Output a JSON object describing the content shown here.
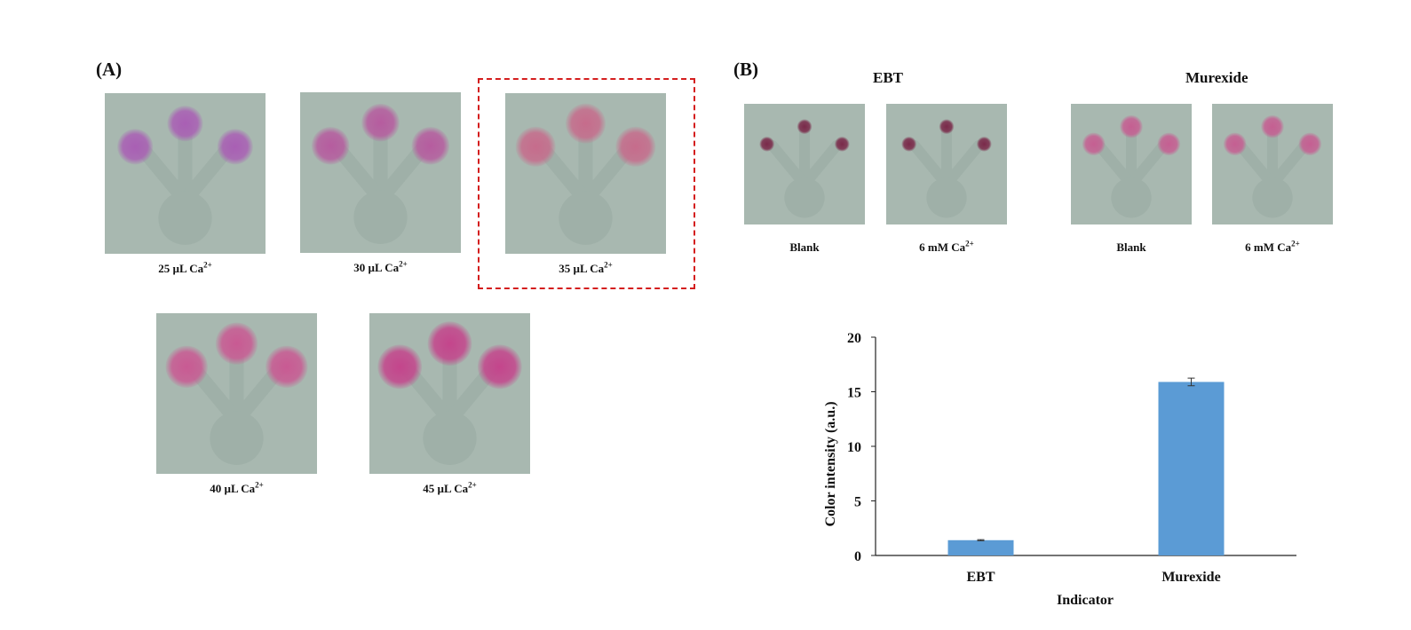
{
  "panel_a": {
    "label": "(A)",
    "items": [
      {
        "vol": "25 µL Ca",
        "ion": "2+",
        "spot_color": "#a95fb4"
      },
      {
        "vol": "30 µL Ca",
        "ion": "2+",
        "spot_color": "#b65c9f"
      },
      {
        "vol": "35 µL Ca",
        "ion": "2+",
        "spot_color": "#c66c8c"
      },
      {
        "vol": "40 µL Ca",
        "ion": "2+",
        "spot_color": "#c95a93"
      },
      {
        "vol": "45 µL Ca",
        "ion": "2+",
        "spot_color": "#c4458c"
      }
    ],
    "highlight_color": "#d41e1e"
  },
  "panel_b": {
    "label": "(B)",
    "groups": [
      {
        "name": "EBT",
        "items": [
          {
            "caption": "Blank",
            "ion": ""
          },
          {
            "caption": "6 mM Ca",
            "ion": "2+"
          }
        ],
        "spot_color": "#7a2a4a"
      },
      {
        "name": "Murexide",
        "items": [
          {
            "caption": "Blank",
            "ion": ""
          },
          {
            "caption": "6 mM Ca",
            "ion": "2+"
          }
        ],
        "spot_color": "#c55f92"
      }
    ]
  },
  "chart_data": {
    "type": "bar",
    "categories": [
      "EBT",
      "Murexide"
    ],
    "values": [
      1.4,
      15.9
    ],
    "error": [
      0.05,
      0.35
    ],
    "ylabel": "Color intensity (a.u.)",
    "xlabel": "Indicator",
    "ylim": [
      0,
      20
    ],
    "yticks": [
      0,
      5,
      10,
      15,
      20
    ],
    "bar_color": "#5b9bd5"
  }
}
